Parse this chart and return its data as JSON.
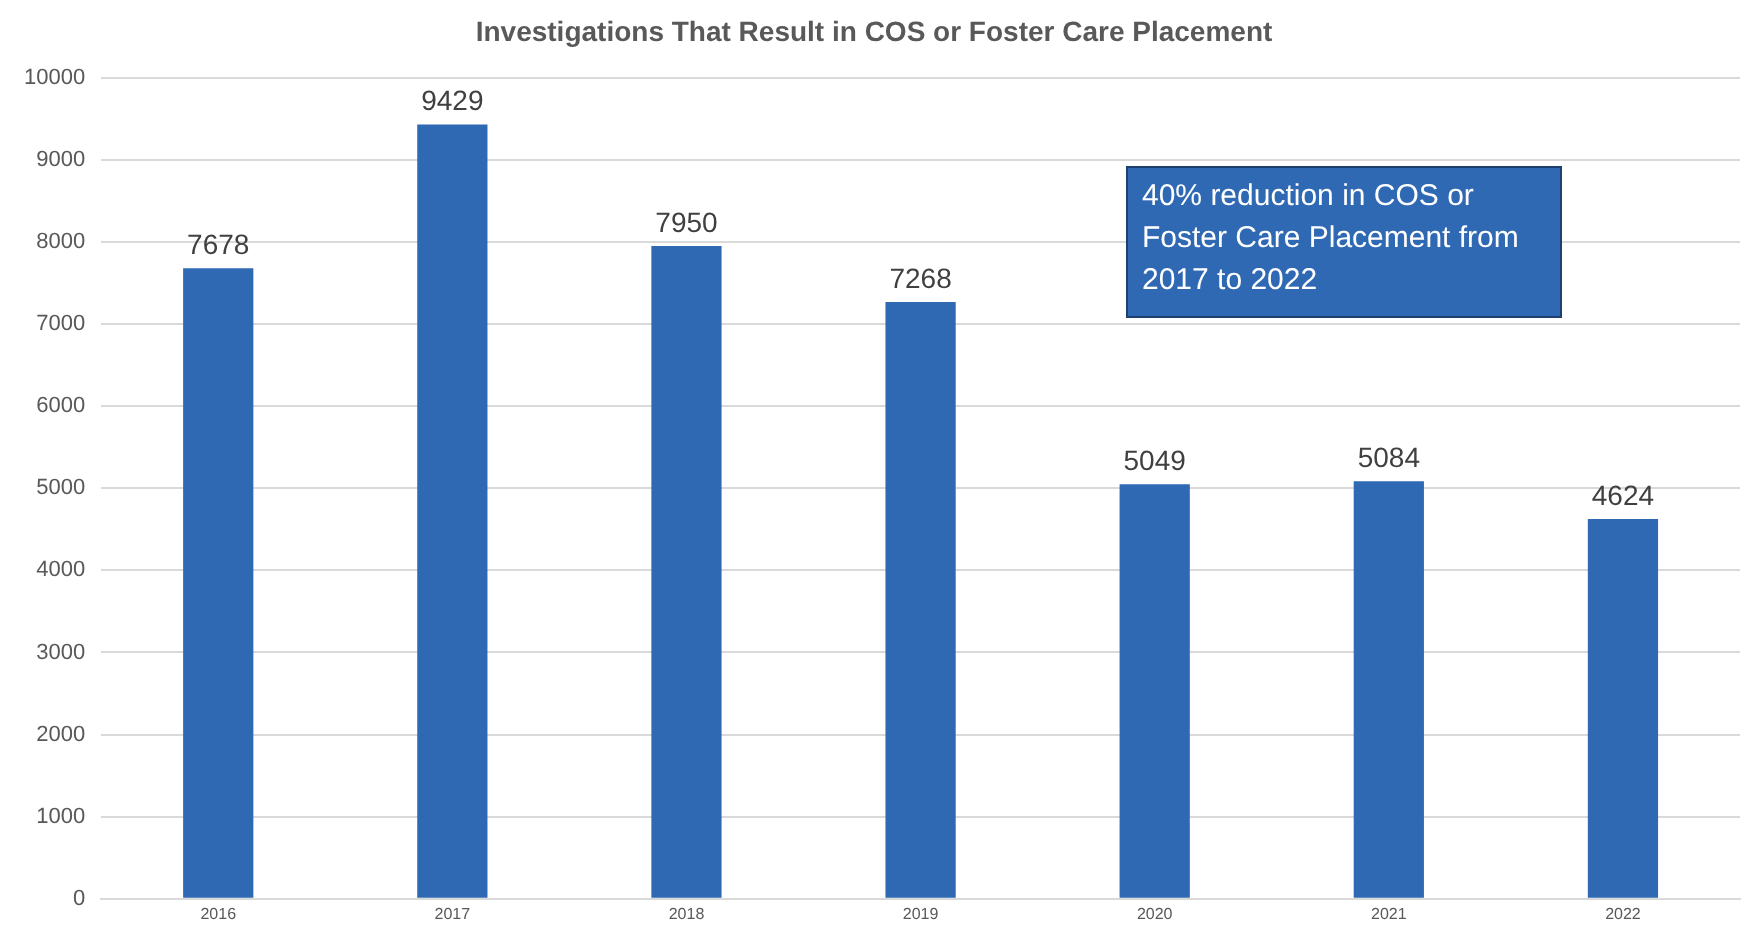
{
  "chart_data": {
    "type": "bar",
    "title": "Investigations That Result in COS or Foster Care Placement",
    "categories": [
      "2016",
      "2017",
      "2018",
      "2019",
      "2020",
      "2021",
      "2022"
    ],
    "values": [
      7678,
      9429,
      7950,
      7268,
      5049,
      5084,
      4624
    ],
    "color": "#2f69b3",
    "ylim": [
      0,
      10000
    ],
    "yticks": [
      0,
      1000,
      2000,
      3000,
      4000,
      5000,
      6000,
      7000,
      8000,
      9000,
      10000
    ],
    "grid": "y",
    "data_labels": true,
    "legend": false,
    "annotations": [
      "40% reduction in COS or Foster Care Placement from 2017 to 2022"
    ]
  }
}
